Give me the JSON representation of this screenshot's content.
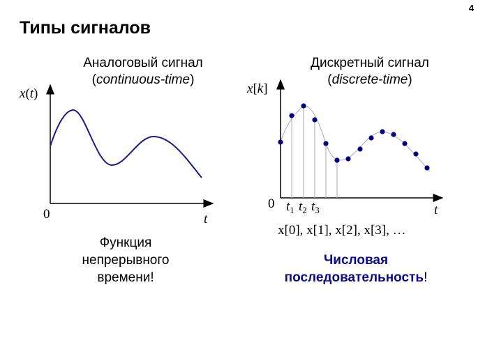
{
  "page_number": "4",
  "title": "Типы сигналов",
  "analog": {
    "heading": "Аналоговый сигнал",
    "heading_en": "continuous-time",
    "y_label_var": "x",
    "y_label_arg": "t",
    "origin": "0",
    "x_label": "t",
    "caption": [
      "Функция",
      "непрерывного",
      "времени!"
    ],
    "curve_color": "#1a1a8c"
  },
  "discrete": {
    "heading": "Дискретный сигнал",
    "heading_en": "discrete-time",
    "y_label_var": "x",
    "y_label_arg": "k",
    "origin": "0",
    "x_label": "t",
    "ticks": [
      {
        "t": "t",
        "sub": "1"
      },
      {
        "t": "t",
        "sub": "2"
      },
      {
        "t": "t",
        "sub": "3"
      }
    ],
    "sequence": "x[0], x[1], x[2], x[3], …",
    "caption_bold": "Числовая последовательность",
    "caption_tail": "!",
    "accent_color": "#0a0a8c",
    "sample_color": "#000080"
  }
}
